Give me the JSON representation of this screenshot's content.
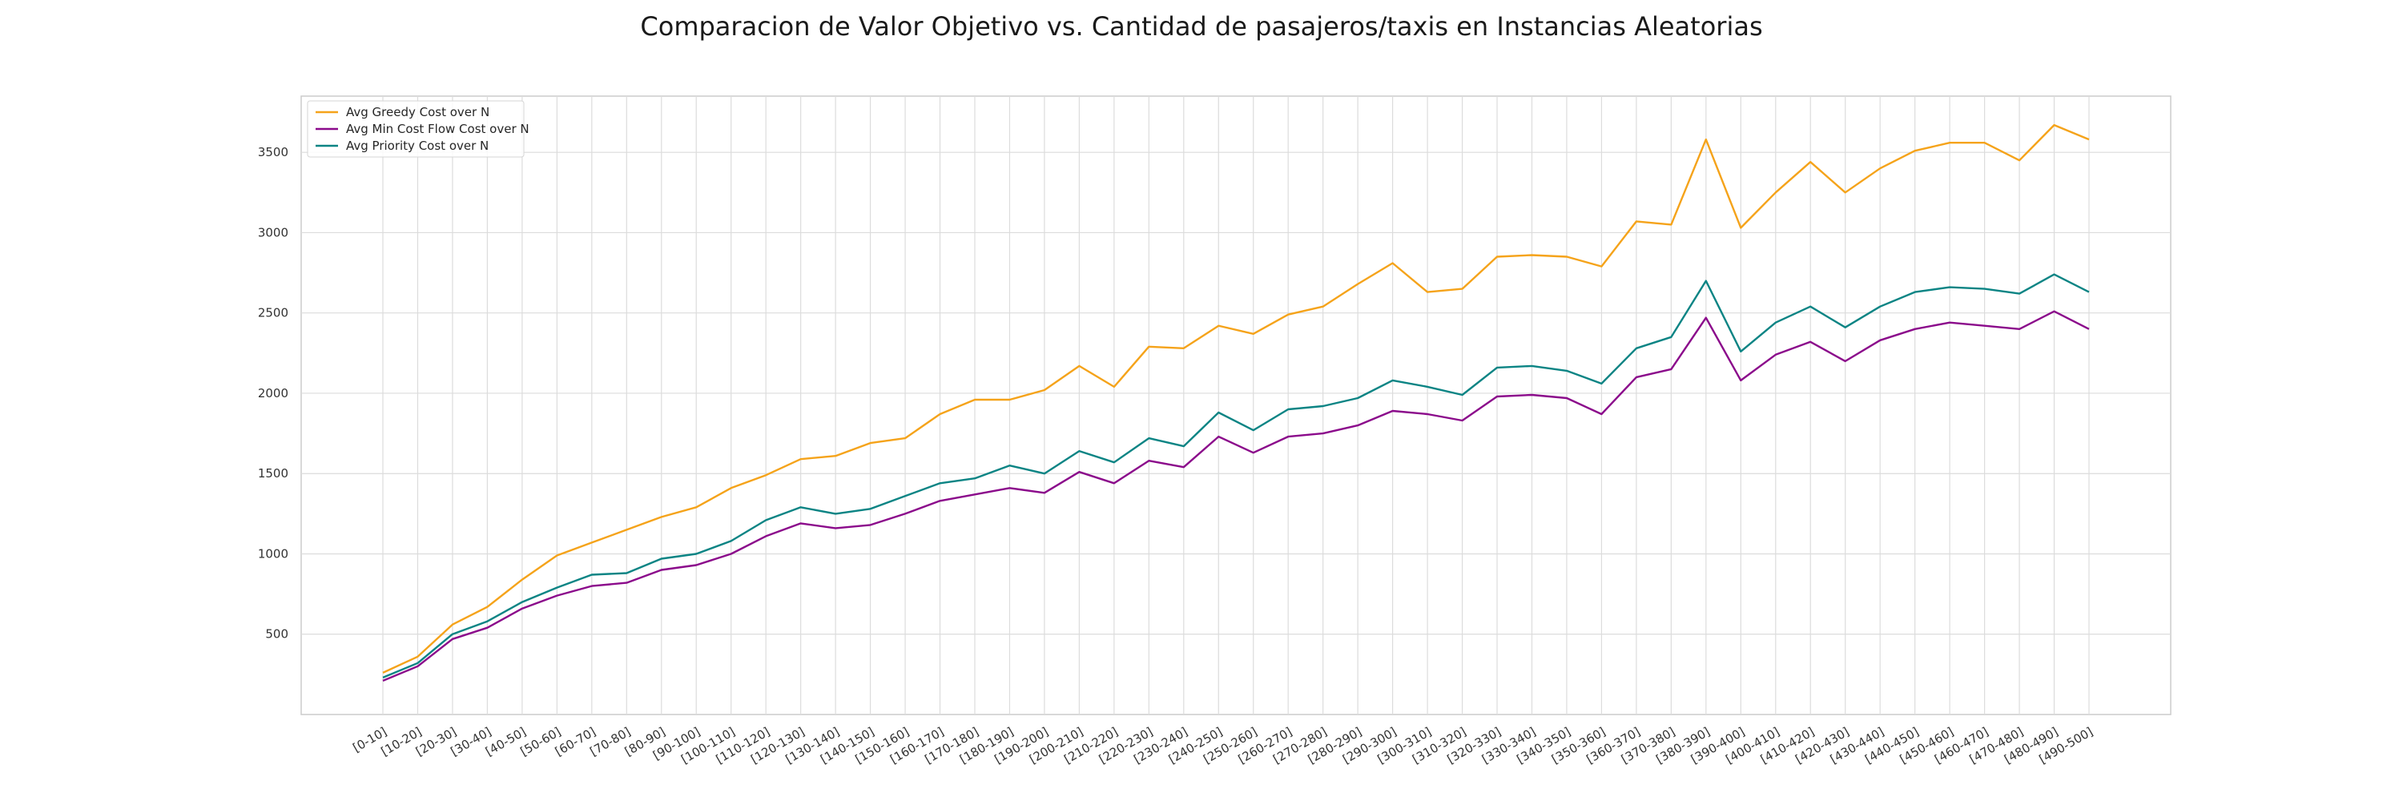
{
  "chart_data": {
    "type": "line",
    "title": "Comparacion de Valor Objetivo vs. Cantidad de pasajeros/taxis en Instancias Aleatorias",
    "xlabel": "",
    "ylabel": "",
    "ylim": [
      0,
      3850
    ],
    "yticks": [
      500,
      1000,
      1500,
      2000,
      2500,
      3000,
      3500
    ],
    "grid": true,
    "legend_position": "top-left",
    "categories": [
      "[0-10]",
      "[10-20]",
      "[20-30]",
      "[30-40]",
      "[40-50]",
      "[50-60]",
      "[60-70]",
      "[70-80]",
      "[80-90]",
      "[90-100]",
      "[100-110]",
      "[110-120]",
      "[120-130]",
      "[130-140]",
      "[140-150]",
      "[150-160]",
      "[160-170]",
      "[170-180]",
      "[180-190]",
      "[190-200]",
      "[200-210]",
      "[210-220]",
      "[220-230]",
      "[230-240]",
      "[240-250]",
      "[250-260]",
      "[260-270]",
      "[270-280]",
      "[280-290]",
      "[290-300]",
      "[300-310]",
      "[310-320]",
      "[320-330]",
      "[330-340]",
      "[340-350]",
      "[350-360]",
      "[360-370]",
      "[370-380]",
      "[380-390]",
      "[390-400]",
      "[400-410]",
      "[410-420]",
      "[420-430]",
      "[430-440]",
      "[440-450]",
      "[450-460]",
      "[460-470]",
      "[470-480]",
      "[480-490]",
      "[490-500]"
    ],
    "series": [
      {
        "name": "Avg Greedy Cost over N",
        "color": "#f5a31a",
        "values": [
          260,
          360,
          560,
          670,
          840,
          990,
          1070,
          1150,
          1230,
          1290,
          1410,
          1490,
          1590,
          1610,
          1690,
          1720,
          1870,
          1960,
          1960,
          2020,
          2170,
          2040,
          2290,
          2280,
          2420,
          2370,
          2490,
          2540,
          2680,
          2810,
          2630,
          2650,
          2850,
          2860,
          2850,
          2790,
          3070,
          3050,
          3580,
          3030,
          3250,
          3440,
          3250,
          3400,
          3510,
          3560,
          3560,
          3450,
          3670,
          3580
        ]
      },
      {
        "name": "Avg Min Cost Flow Cost over N",
        "color": "#8b0a8b",
        "values": [
          210,
          300,
          470,
          540,
          660,
          740,
          800,
          820,
          900,
          930,
          1000,
          1110,
          1190,
          1160,
          1180,
          1250,
          1330,
          1370,
          1410,
          1380,
          1510,
          1440,
          1580,
          1540,
          1730,
          1630,
          1730,
          1750,
          1800,
          1890,
          1870,
          1830,
          1980,
          1990,
          1970,
          1870,
          2100,
          2150,
          2470,
          2080,
          2240,
          2320,
          2200,
          2330,
          2400,
          2440,
          2420,
          2400,
          2510,
          2400
        ]
      },
      {
        "name": "Avg Priority Cost over N",
        "color": "#0b8484",
        "values": [
          230,
          320,
          500,
          580,
          700,
          790,
          870,
          880,
          970,
          1000,
          1080,
          1210,
          1290,
          1250,
          1280,
          1360,
          1440,
          1470,
          1550,
          1500,
          1640,
          1570,
          1720,
          1670,
          1880,
          1770,
          1900,
          1920,
          1970,
          2080,
          2040,
          1990,
          2160,
          2170,
          2140,
          2060,
          2280,
          2350,
          2700,
          2260,
          2440,
          2540,
          2410,
          2540,
          2630,
          2660,
          2650,
          2620,
          2740,
          2630
        ]
      }
    ]
  }
}
